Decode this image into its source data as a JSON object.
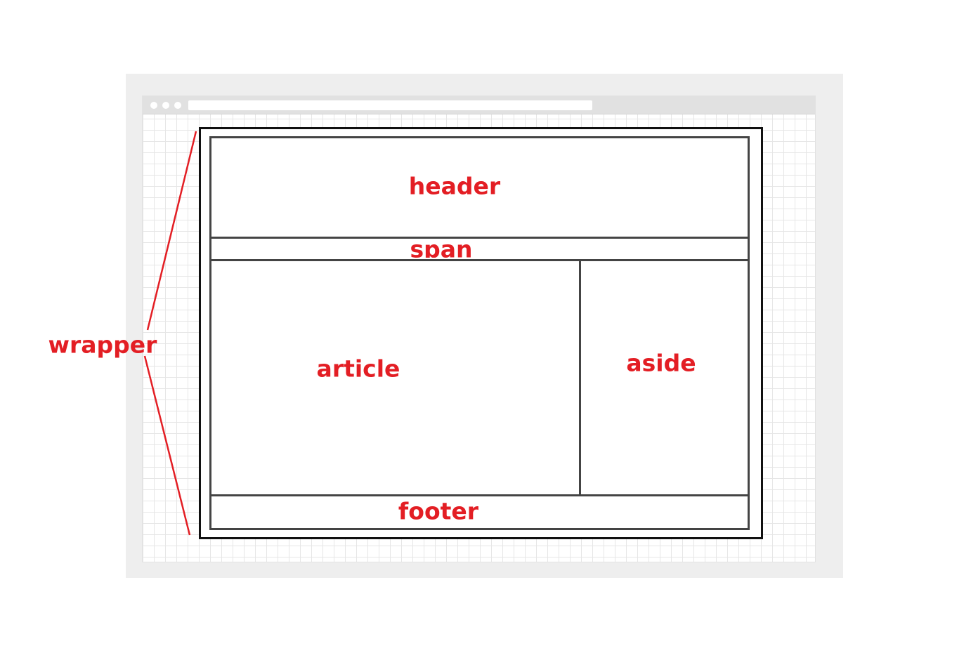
{
  "diagram": {
    "labels": {
      "header": "header",
      "span": "span",
      "article": "article",
      "aside": "aside",
      "footer": "footer",
      "wrapper": "wrapper"
    },
    "colors": {
      "label": "#e31e24",
      "border": "#444444",
      "wrapper_border": "#111111",
      "frame": "#eeeeee",
      "titlebar": "#e1e1e1"
    }
  }
}
